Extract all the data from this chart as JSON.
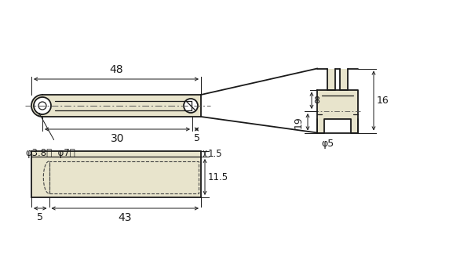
{
  "bg_color": "#ffffff",
  "part_color": "#e8e4cc",
  "line_color": "#1a1a1a",
  "dim_color": "#1a1a1a",
  "dash_color": "#444444",
  "centerline_color": "#555555"
}
